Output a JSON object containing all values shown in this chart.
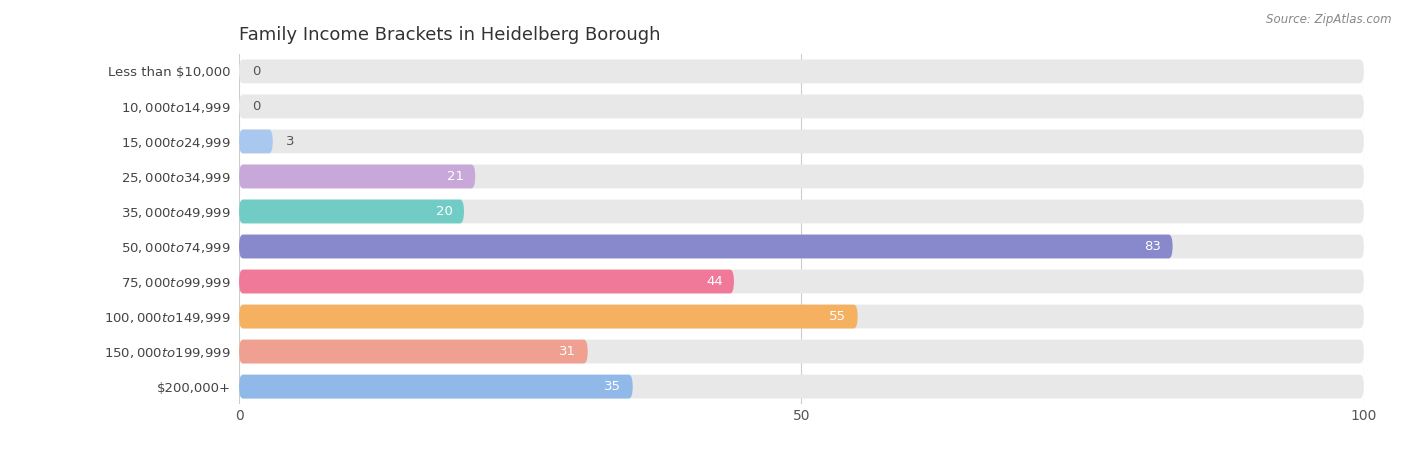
{
  "title": "Family Income Brackets in Heidelberg Borough",
  "source": "Source: ZipAtlas.com",
  "categories": [
    "Less than $10,000",
    "$10,000 to $14,999",
    "$15,000 to $24,999",
    "$25,000 to $34,999",
    "$35,000 to $49,999",
    "$50,000 to $74,999",
    "$75,000 to $99,999",
    "$100,000 to $149,999",
    "$150,000 to $199,999",
    "$200,000+"
  ],
  "values": [
    0,
    0,
    3,
    21,
    20,
    83,
    44,
    55,
    31,
    35
  ],
  "colors": [
    "#f9c285",
    "#f29898",
    "#a8c8f0",
    "#c8a8d8",
    "#70ccc4",
    "#8888cc",
    "#f07898",
    "#f5b060",
    "#f0a090",
    "#90b8e8"
  ],
  "xlim": [
    0,
    100
  ],
  "xticks": [
    0,
    50,
    100
  ],
  "bar_bg_color": "#e8e8e8",
  "title_fontsize": 13,
  "tick_fontsize": 10,
  "label_fontsize": 9.5,
  "category_fontsize": 9.5,
  "inside_label_color": "#ffffff",
  "outside_label_color": "#555555",
  "inside_threshold": 10,
  "bar_height": 0.68
}
